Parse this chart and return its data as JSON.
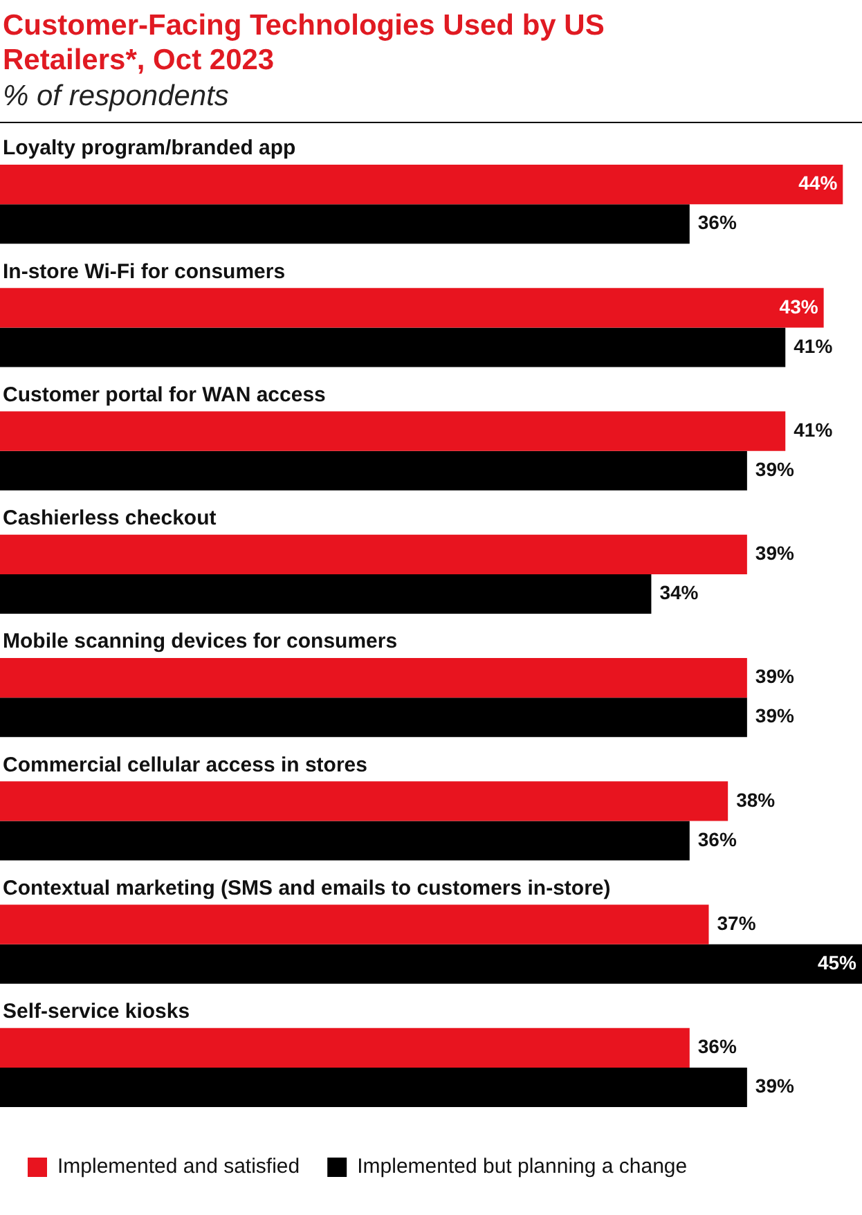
{
  "chart_data": {
    "type": "bar",
    "orientation": "horizontal",
    "title": "Customer-Facing Technologies Used by US Retailers*, Oct 2023",
    "subtitle": "% of respondents",
    "categories": [
      "Loyalty program/branded app",
      "In-store Wi-Fi for consumers",
      "Customer portal for WAN access",
      "Cashierless checkout",
      "Mobile scanning devices for consumers",
      "Commercial cellular access in stores",
      "Contextual marketing (SMS and emails to customers in-store)",
      "Self-service kiosks"
    ],
    "series": [
      {
        "name": "Implemented and satisfied",
        "color": "#e8141f",
        "values": [
          44,
          43,
          41,
          39,
          39,
          38,
          37,
          36
        ],
        "value_labels": [
          "44%",
          "43%",
          "41%",
          "39%",
          "39%",
          "38%",
          "37%",
          "36%"
        ]
      },
      {
        "name": "Implemented but planning a change",
        "color": "#000000",
        "values": [
          36,
          41,
          39,
          34,
          39,
          36,
          45,
          39
        ],
        "value_labels": [
          "36%",
          "41%",
          "39%",
          "34%",
          "39%",
          "36%",
          "45%",
          "39%"
        ]
      }
    ],
    "legend": "bottom left"
  }
}
